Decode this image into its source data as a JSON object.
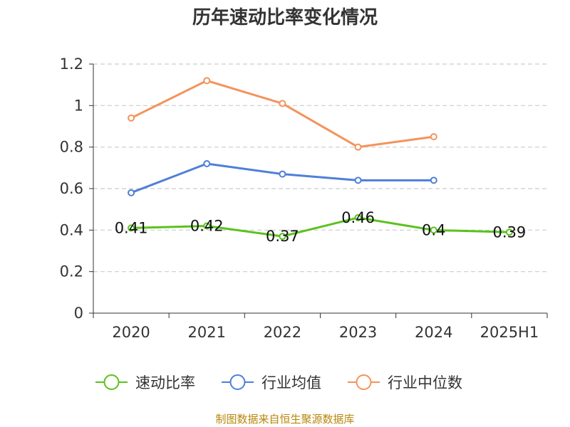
{
  "chart_data": {
    "type": "line",
    "title": "历年速动比率变化情况",
    "categories": [
      "2020",
      "2021",
      "2022",
      "2023",
      "2024",
      "2025H1"
    ],
    "ylim": [
      0,
      1.2
    ],
    "yticks": [
      "0",
      "0.2",
      "0.4",
      "0.6",
      "0.8",
      "1",
      "1.2"
    ],
    "grid": true,
    "legend_position": "bottom",
    "series": [
      {
        "name": "速动比率",
        "color": "#5ac21e",
        "values": [
          0.41,
          0.42,
          0.37,
          0.46,
          0.4,
          0.39
        ],
        "labels": [
          "0.41",
          "0.42",
          "0.37",
          "0.46",
          "0.4",
          "0.39"
        ]
      },
      {
        "name": "行业均值",
        "color": "#4f7fd8",
        "values": [
          0.58,
          0.72,
          0.67,
          0.64,
          0.64,
          null
        ]
      },
      {
        "name": "行业中位数",
        "color": "#f4935b",
        "values": [
          0.94,
          1.12,
          1.01,
          0.8,
          0.85,
          null
        ]
      }
    ]
  },
  "footer": {
    "source": "制图数据来自恒生聚源数据库"
  }
}
